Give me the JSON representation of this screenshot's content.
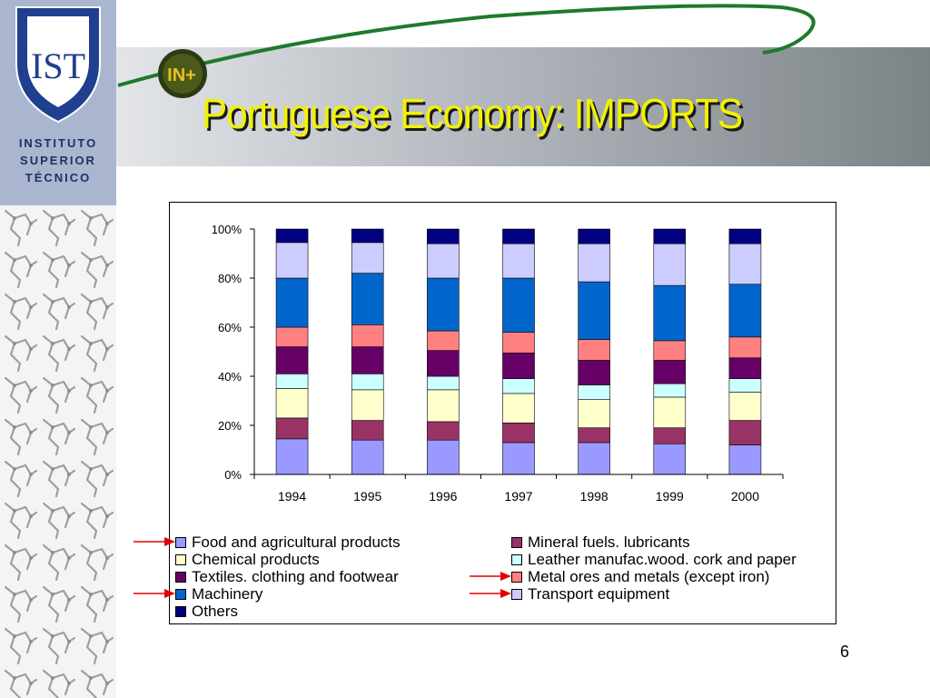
{
  "slide": {
    "title": "Portuguese Economy: IMPORTS",
    "page_number": "6",
    "institution_lines": [
      "INSTITUTO",
      "SUPERIOR",
      "TÉCNICO"
    ],
    "logo_mark": "IST",
    "badge_text": "IN+"
  },
  "colors": {
    "title": "#f2f200",
    "swoosh": "#1e7a2a",
    "arrow": "#e00000"
  },
  "chart_data": {
    "type": "bar",
    "stacked": true,
    "percent": true,
    "categories": [
      "1994",
      "1995",
      "1996",
      "1997",
      "1998",
      "1999",
      "2000"
    ],
    "yticks": [
      "0%",
      "20%",
      "40%",
      "60%",
      "80%",
      "100%"
    ],
    "ylim": [
      0,
      100
    ],
    "legend_position": "bottom",
    "series": [
      {
        "name": "Food and agricultural products",
        "color": "#9999ff",
        "values": [
          14.5,
          14,
          14,
          13,
          13,
          12.5,
          12
        ]
      },
      {
        "name": "Mineral fuels. lubricants",
        "color": "#993366",
        "values": [
          8.5,
          8,
          7.5,
          8,
          6,
          6.5,
          10
        ]
      },
      {
        "name": "Chemical products",
        "color": "#ffffcc",
        "values": [
          12,
          12.5,
          13,
          12,
          11.5,
          12.5,
          11.5
        ]
      },
      {
        "name": "Leather manufac.wood. cork and paper",
        "color": "#ccffff",
        "values": [
          6,
          6.5,
          5.5,
          6,
          6,
          5.5,
          5.5
        ]
      },
      {
        "name": "Textiles. clothing and footwear",
        "color": "#660066",
        "values": [
          11,
          11,
          10.5,
          10.5,
          10,
          9.5,
          8.5
        ]
      },
      {
        "name": "Metal ores and metals (except iron)",
        "color": "#ff8080",
        "values": [
          8,
          9,
          8,
          8.5,
          8.5,
          8,
          8.5
        ]
      },
      {
        "name": "Machinery",
        "color": "#0066cc",
        "values": [
          20,
          21,
          21.5,
          22,
          23.5,
          22.5,
          21.5
        ]
      },
      {
        "name": "Transport equipment",
        "color": "#ccccff",
        "values": [
          14.5,
          12.5,
          14,
          14,
          15.5,
          17,
          16.5
        ]
      },
      {
        "name": "Others",
        "color": "#000080",
        "values": [
          5.5,
          5.5,
          6,
          6,
          6,
          6,
          6
        ]
      }
    ],
    "legend_arrows": [
      "Food and agricultural products",
      "Machinery",
      "Metal ores and metals (except iron)",
      "Transport equipment"
    ]
  }
}
